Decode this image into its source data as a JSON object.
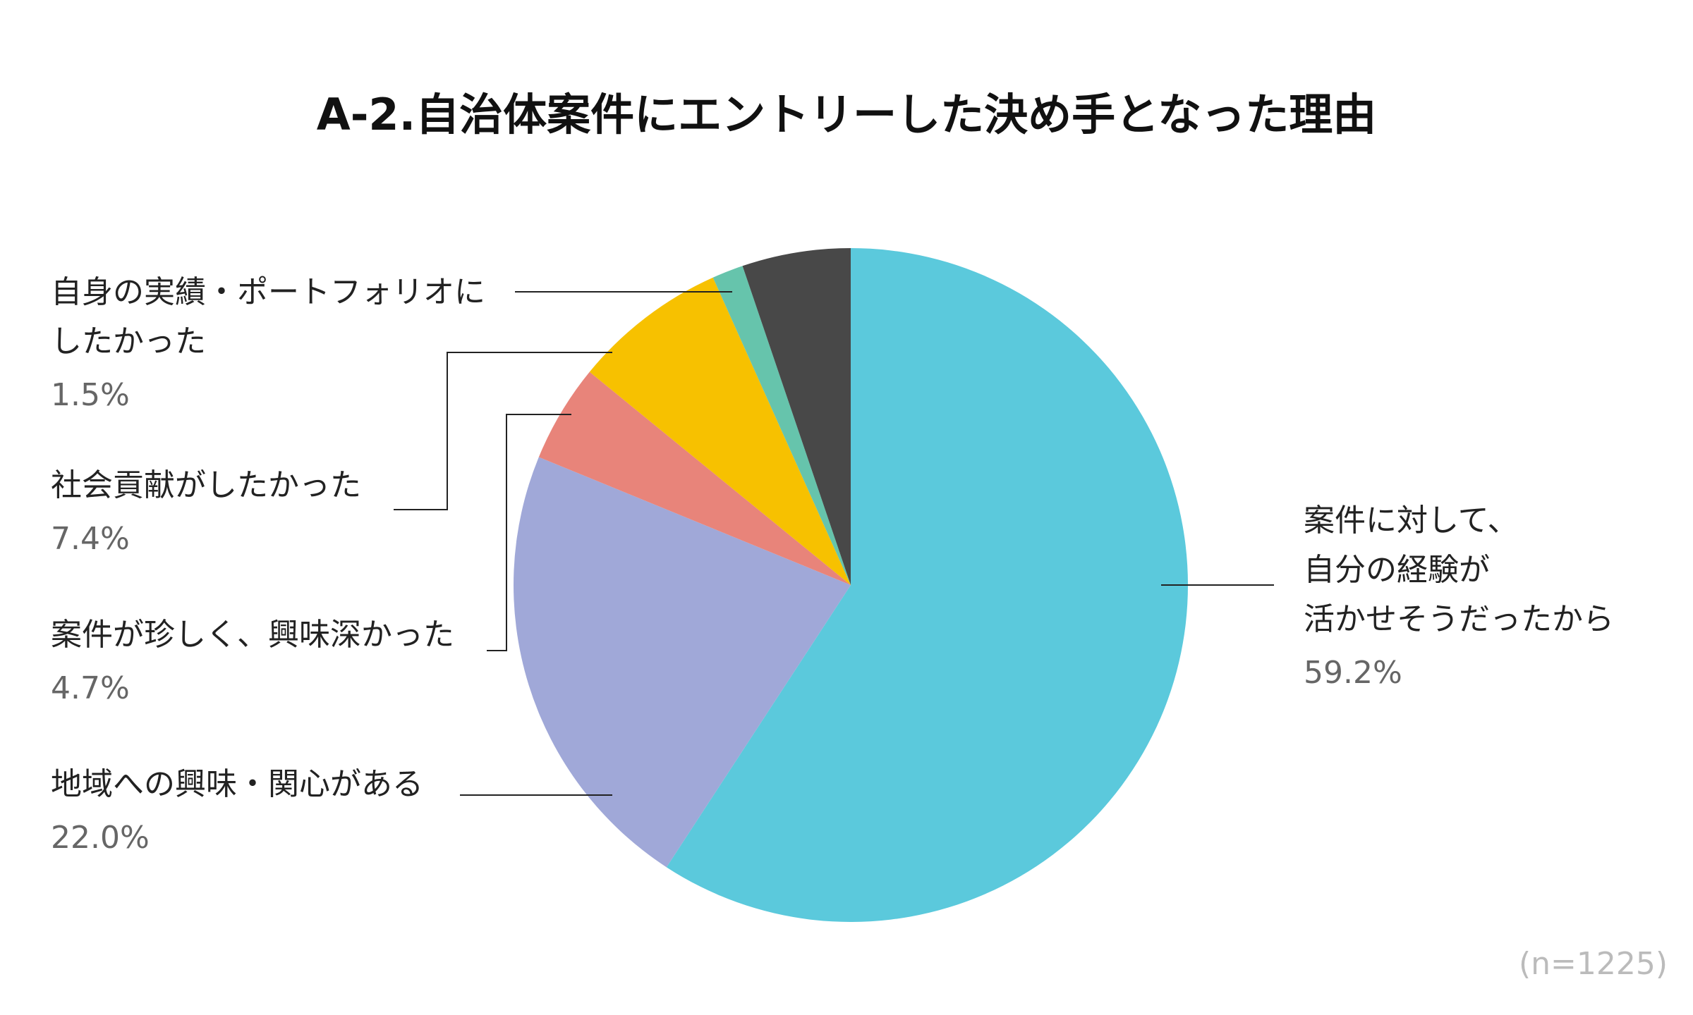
{
  "title": "A-2.自治体案件にエントリーした決め手となった理由",
  "sample_note": "(n=1225)",
  "chart_data": {
    "type": "pie",
    "title": "A-2.自治体案件にエントリーした決め手となった理由",
    "start_angle": "12 o'clock",
    "direction": "clockwise",
    "slices": [
      {
        "label": "案件に対して、\n自分の経験が\n活かせそうだったから",
        "value": 59.2,
        "value_text": "59.2%",
        "color": "#5bc9dc"
      },
      {
        "label": "地域への興味・関心がある",
        "value": 22.0,
        "value_text": "22.0%",
        "color": "#a0a8d8"
      },
      {
        "label": "案件が珍しく、興味深かった",
        "value": 4.7,
        "value_text": "4.7%",
        "color": "#e8847a"
      },
      {
        "label": "社会貢献がしたかった",
        "value": 7.4,
        "value_text": "7.4%",
        "color": "#f7c100"
      },
      {
        "label": "自身の実績・ポートフォリオに\nしたかった",
        "value": 1.5,
        "value_text": "1.5%",
        "color": "#66c4ac"
      },
      {
        "label": "",
        "value": 5.2,
        "value_text": "",
        "color": "#484848"
      }
    ]
  }
}
